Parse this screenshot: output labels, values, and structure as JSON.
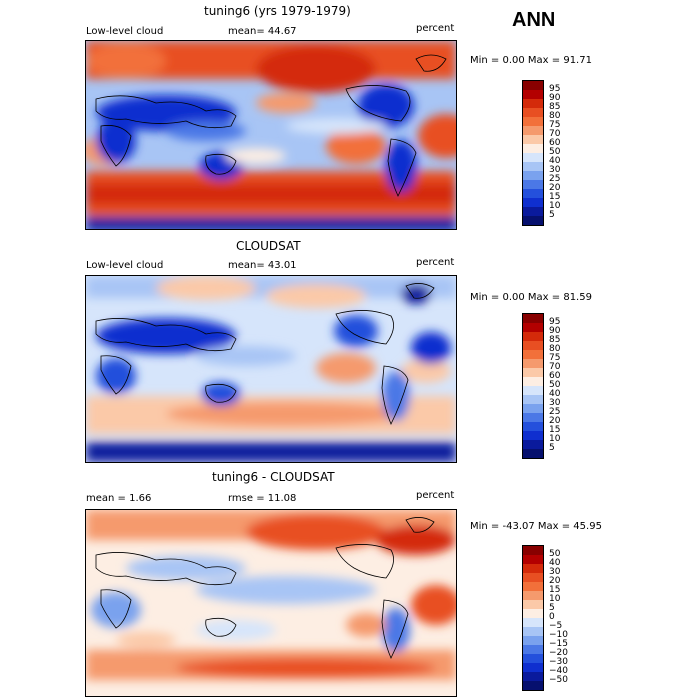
{
  "header": {
    "season": "ANN"
  },
  "panels": [
    {
      "title": "tuning6 (yrs 1979-1979)",
      "left_label": "Low-level cloud",
      "mid_label": "mean=  44.67",
      "units": "percent",
      "minmax": "Min =   0.00 Max =  91.71",
      "colorbar_labels": [
        "95",
        "90",
        "85",
        "80",
        "75",
        "70",
        "60",
        "50",
        "40",
        "30",
        "25",
        "20",
        "15",
        "10",
        "5"
      ]
    },
    {
      "title": "CLOUDSAT",
      "left_label": "Low-level cloud",
      "mid_label": "mean=  43.01",
      "units": "percent",
      "minmax": "Min =   0.00 Max =  81.59",
      "colorbar_labels": [
        "95",
        "90",
        "85",
        "80",
        "75",
        "70",
        "60",
        "50",
        "40",
        "30",
        "25",
        "20",
        "15",
        "10",
        "5"
      ]
    },
    {
      "title": "tuning6 - CLOUDSAT",
      "left_label": "mean =    1.66",
      "mid_label": "rmse =  11.08",
      "units": "percent",
      "minmax": "Min = -43.07 Max =  45.95",
      "colorbar_labels": [
        "50",
        "40",
        "30",
        "20",
        "15",
        "10",
        "5",
        "0",
        "−5",
        "−10",
        "−15",
        "−20",
        "−30",
        "−40",
        "−50"
      ]
    }
  ],
  "colors": {
    "scale": [
      "#880000",
      "#b30000",
      "#d42a0a",
      "#e84f22",
      "#f2703a",
      "#f59a6d",
      "#fbc9a8",
      "#fdeee3",
      "#d6e5fb",
      "#a8c5f5",
      "#7aa2ee",
      "#4b78e6",
      "#2450dc",
      "#0f2fcf",
      "#0a1a9c",
      "#06106e"
    ]
  }
}
